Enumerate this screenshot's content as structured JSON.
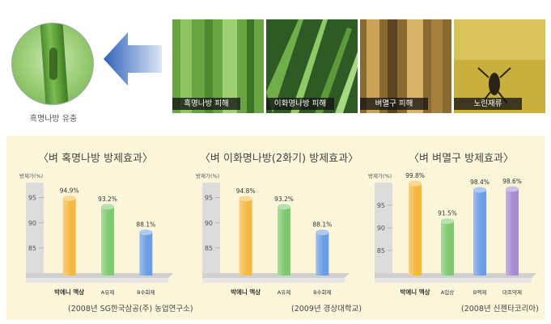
{
  "intro": {
    "circle_label": "흑명나방 유충",
    "photos": [
      {
        "caption": "흑명나방 피해",
        "color": "#5d9a3c"
      },
      {
        "caption": "이화명나방 피해",
        "color": "#3c6e2e"
      },
      {
        "caption": "벼멸구 피해",
        "color": "#b48a3c"
      },
      {
        "caption": "노린재류",
        "color": "#c9a93a"
      }
    ],
    "arrow_color": "#4a7fc8"
  },
  "panel_bg": "#fbf6da",
  "chart_data": [
    {
      "type": "bar",
      "title": "〈벼 혹명나방 방제효과〉",
      "ylabel": "방제가(%)",
      "ylim": [
        80,
        98
      ],
      "yticks": [
        85,
        90,
        95
      ],
      "categories": [
        "박에니 액상",
        "A유제",
        "B수화제"
      ],
      "values": [
        94.9,
        93.2,
        88.1
      ],
      "value_labels": [
        "94.9%",
        "93.2%",
        "88.1%"
      ],
      "colors": [
        "#f4b73f",
        "#7cc96e",
        "#6b9de4"
      ],
      "source": "(2008년 SG한국삼공(주) 농업연구소)"
    },
    {
      "type": "bar",
      "title": "〈벼 이화명나방(2화기) 방제효과〉",
      "ylabel": "방제가(%)",
      "ylim": [
        80,
        98
      ],
      "yticks": [
        85,
        90,
        95
      ],
      "categories": [
        "박에니 액상",
        "A유제",
        "B수화제"
      ],
      "values": [
        94.8,
        93.2,
        88.1
      ],
      "value_labels": [
        "94.8%",
        "93.2%",
        "88.1%"
      ],
      "colors": [
        "#f4b73f",
        "#7cc96e",
        "#6b9de4"
      ],
      "source": "(2009년 경상대학교)"
    },
    {
      "type": "bar",
      "title": "〈벼 벼멸구 방제효과〉",
      "ylabel": "방제가(%)",
      "ylim": [
        80,
        100
      ],
      "yticks": [
        85,
        90,
        95
      ],
      "categories": [
        "박에니 액상",
        "A입상",
        "B액제",
        "대조약제"
      ],
      "values": [
        99.8,
        91.5,
        98.4,
        98.6
      ],
      "value_labels": [
        "99.8%",
        "91.5%",
        "98.4%",
        "98.6%"
      ],
      "colors": [
        "#f4b73f",
        "#7cc96e",
        "#6b9de4",
        "#a78ad0"
      ],
      "source": "(2008년 신젠타코리아)"
    }
  ]
}
